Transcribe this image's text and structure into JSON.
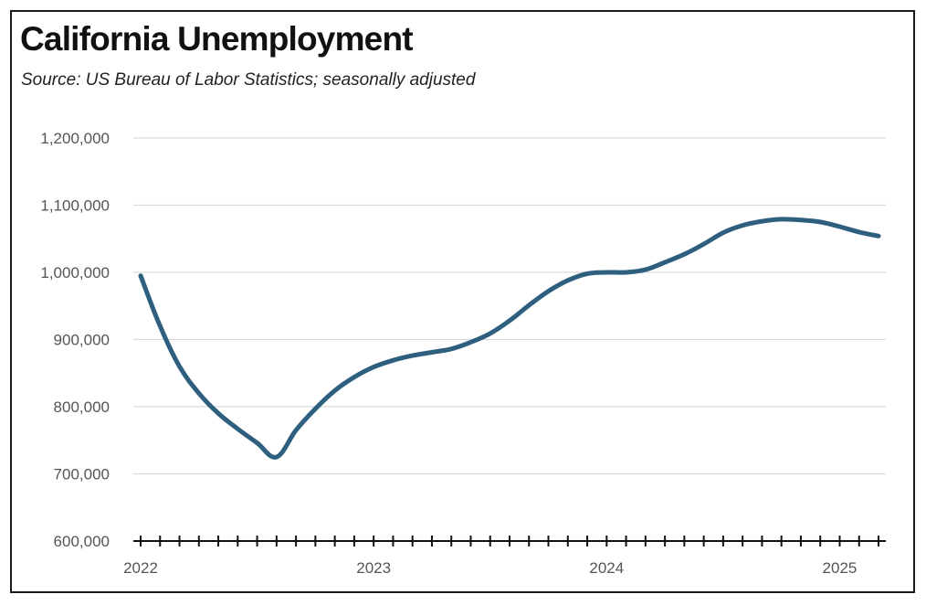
{
  "chart_data": {
    "type": "line",
    "title": "California Unemployment",
    "subtitle": "Source:  US Bureau of Labor Statistics; seasonally adjusted",
    "xlabel": "",
    "ylabel": "",
    "ylim": [
      600000,
      1200000
    ],
    "yticks": [
      600000,
      700000,
      800000,
      900000,
      1000000,
      1100000,
      1200000
    ],
    "ytick_labels": [
      "600,000",
      "700,000",
      "800,000",
      "900,000",
      "1,000,000",
      "1,100,000",
      "1,200,000"
    ],
    "xticks": [
      "2022",
      "2023",
      "2024",
      "2025"
    ],
    "grid": true,
    "color": "#2e5f7f",
    "series": [
      {
        "x": [
          "2022-01",
          "2022-02",
          "2022-03",
          "2022-04",
          "2022-05",
          "2022-06",
          "2022-07",
          "2022-08",
          "2022-09",
          "2022-10",
          "2022-11",
          "2022-12",
          "2023-01",
          "2023-02",
          "2023-03",
          "2023-04",
          "2023-05",
          "2023-06",
          "2023-07",
          "2023-08",
          "2023-09",
          "2023-10",
          "2023-11",
          "2023-12",
          "2024-01",
          "2024-02",
          "2024-03",
          "2024-04",
          "2024-05",
          "2024-06",
          "2024-07",
          "2024-08",
          "2024-09",
          "2024-10",
          "2024-11",
          "2024-12",
          "2025-01",
          "2025-02",
          "2025-03"
        ],
        "values": [
          995000,
          920000,
          860000,
          820000,
          790000,
          767000,
          746000,
          725000,
          765000,
          797000,
          824000,
          844000,
          859000,
          869000,
          876000,
          881000,
          886000,
          896000,
          909000,
          928000,
          951000,
          972000,
          988000,
          998000,
          1000000,
          1000000,
          1004000,
          1015000,
          1027000,
          1042000,
          1059000,
          1070000,
          1076000,
          1079000,
          1078000,
          1075000,
          1068000,
          1060000,
          1054000
        ]
      }
    ]
  }
}
